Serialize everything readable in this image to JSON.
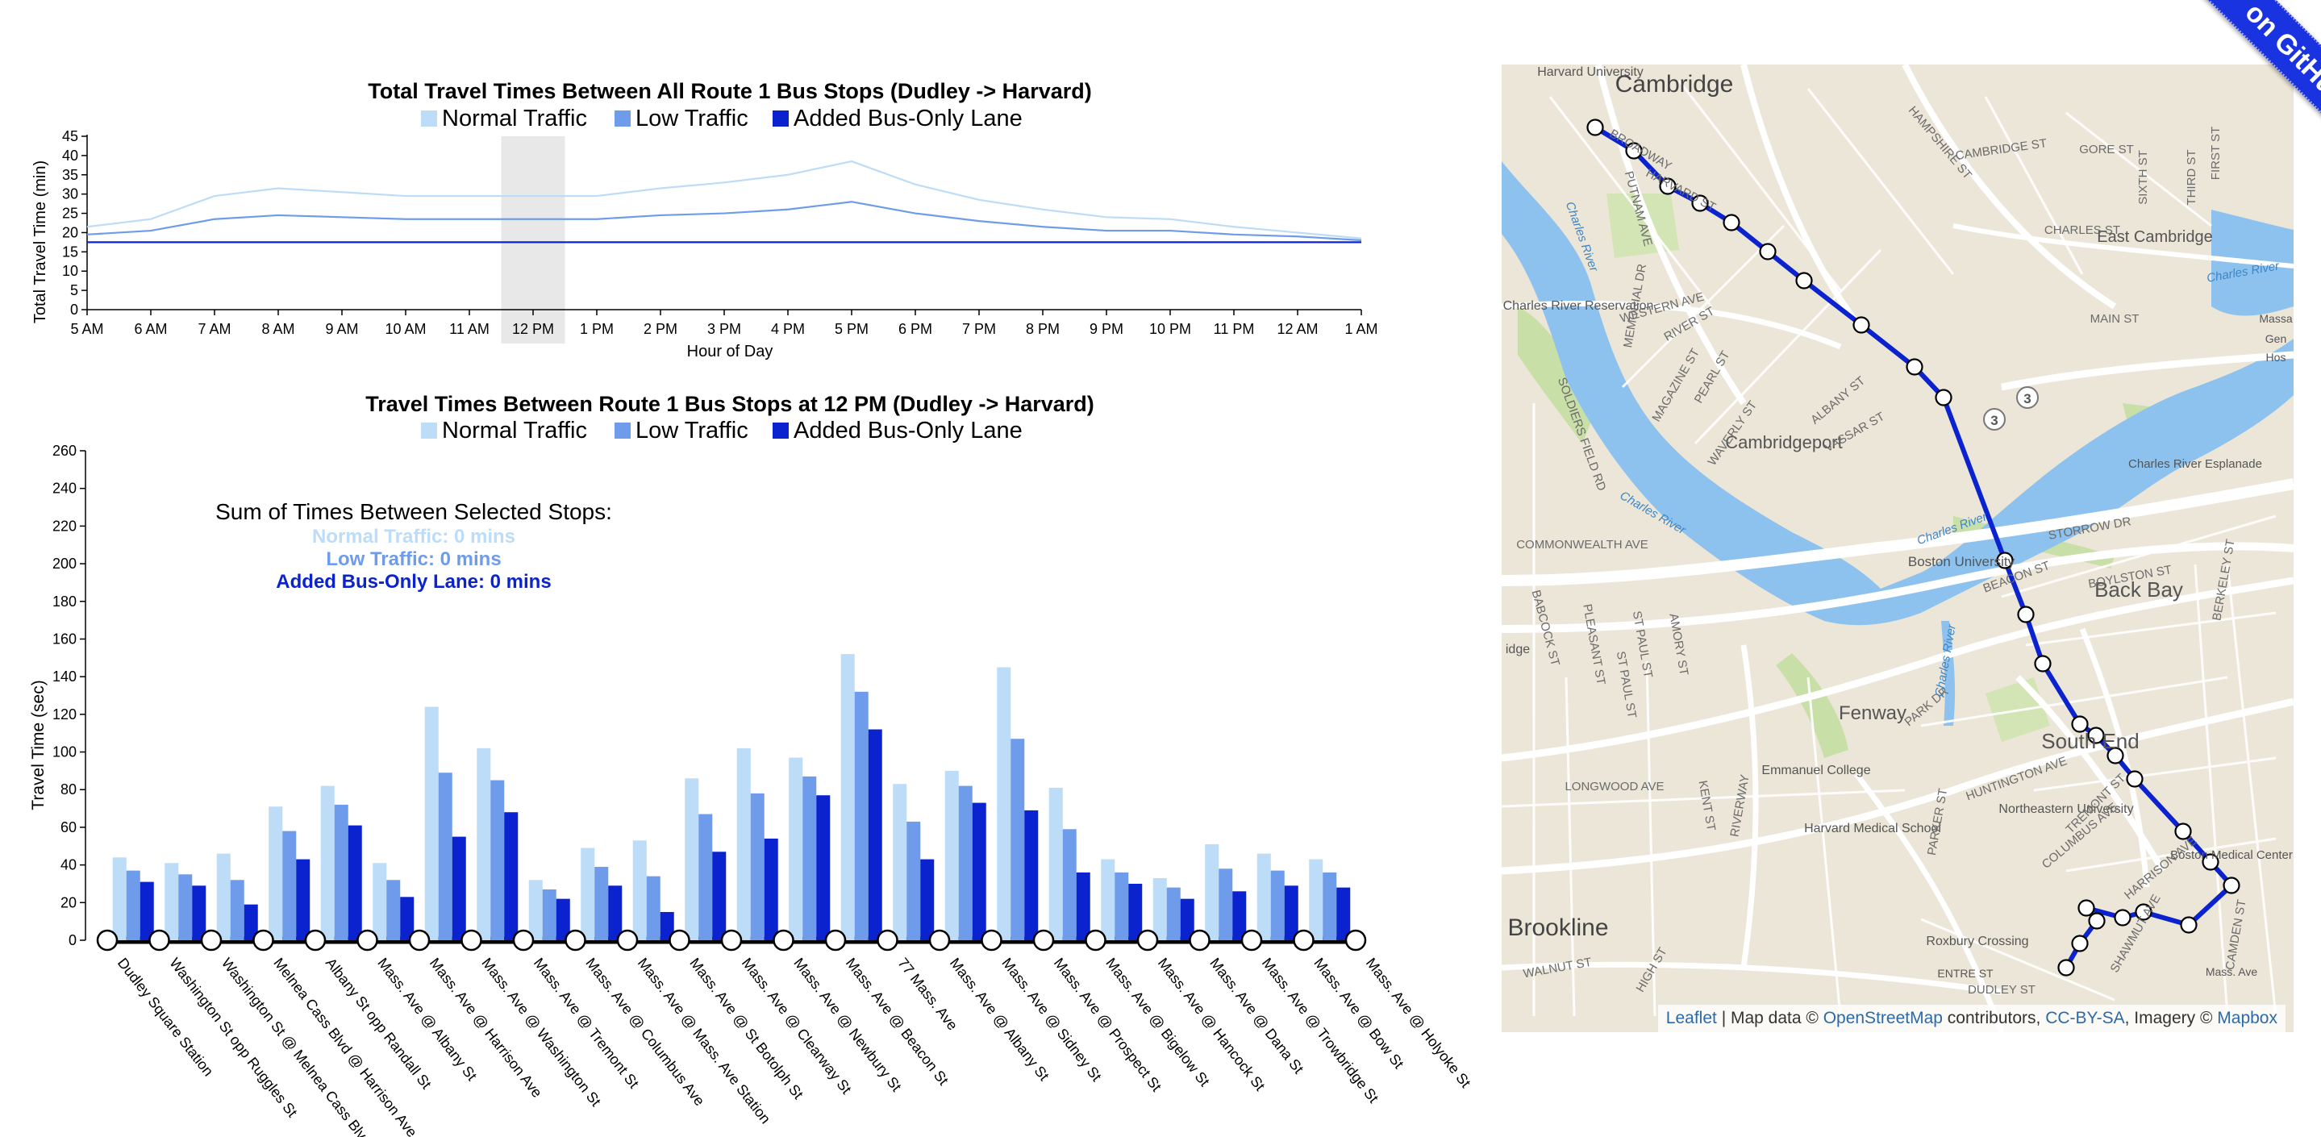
{
  "ribbon_text": "on GitHub",
  "colors": {
    "normal": "#bcdcf8",
    "low": "#6e9cea",
    "bus": "#0b23cf",
    "highlight": "#e8e8e8"
  },
  "chart_data": [
    {
      "type": "line",
      "title": "Total Travel Times Between All Route 1 Bus Stops (Dudley -> Harvard)",
      "legend": [
        "Normal Traffic",
        "Low Traffic",
        "Added Bus-Only Lane"
      ],
      "xlabel": "Hour of Day",
      "ylabel": "Total Travel Time (min)",
      "ylim": [
        0,
        45
      ],
      "yticks": [
        0,
        5,
        10,
        15,
        20,
        25,
        30,
        35,
        40,
        45
      ],
      "x": [
        "5 AM",
        "6 AM",
        "7 AM",
        "8 AM",
        "9 AM",
        "10 AM",
        "11 AM",
        "12 PM",
        "1 PM",
        "2 PM",
        "3 PM",
        "4 PM",
        "5 PM",
        "6 PM",
        "7 PM",
        "8 PM",
        "9 PM",
        "10 PM",
        "11 PM",
        "12 AM",
        "1 AM"
      ],
      "highlight": "12 PM",
      "series": [
        {
          "name": "Normal Traffic",
          "values": [
            21.5,
            23.5,
            29.5,
            31.5,
            30.5,
            29.5,
            29.5,
            29.5,
            29.5,
            31.5,
            33,
            35,
            38.5,
            32.5,
            28.5,
            26,
            24,
            23.5,
            21.5,
            20,
            18.5
          ]
        },
        {
          "name": "Low Traffic",
          "values": [
            19.5,
            20.5,
            23.5,
            24.5,
            24,
            23.5,
            23.5,
            23.5,
            23.5,
            24.5,
            25,
            26,
            28,
            25,
            23,
            21.5,
            20.5,
            20.5,
            19.5,
            19,
            18
          ]
        },
        {
          "name": "Added Bus-Only Lane",
          "values": [
            17.5,
            17.5,
            17.5,
            17.5,
            17.5,
            17.5,
            17.5,
            17.5,
            17.5,
            17.5,
            17.5,
            17.5,
            17.5,
            17.5,
            17.5,
            17.5,
            17.5,
            17.5,
            17.5,
            17.5,
            17.5
          ]
        }
      ]
    },
    {
      "type": "bar",
      "title": "Travel Times Between Route 1 Bus Stops at 12 PM (Dudley -> Harvard)",
      "legend": [
        "Normal Traffic",
        "Low Traffic",
        "Added Bus-Only Lane"
      ],
      "ylabel": "Travel Time (sec)",
      "ylim": [
        0,
        260
      ],
      "yticks": [
        0,
        20,
        40,
        60,
        80,
        100,
        120,
        140,
        160,
        180,
        200,
        220,
        240,
        260
      ],
      "stops": [
        "Dudley Square Station",
        "Washington St opp Ruggles St",
        "Washington St @ Melnea Cass Blvd",
        "Melnea Cass Blvd @ Harrison Ave",
        "Albany St opp Randall St",
        "Mass. Ave @ Albany St",
        "Mass. Ave @ Harrison Ave",
        "Mass. Ave @ Washington St",
        "Mass. Ave @ Tremont St",
        "Mass. Ave @ Columbus Ave",
        "Mass. Ave @ Mass. Ave Station",
        "Mass. Ave @ St Botolph St",
        "Mass. Ave @ Clearway St",
        "Mass. Ave @ Newbury St",
        "Mass. Ave @ Beacon St",
        "77 Mass. Ave",
        "Mass. Ave @ Albany St",
        "Mass. Ave @ Sidney St",
        "Mass. Ave @ Prospect St",
        "Mass. Ave @ Bigelow St",
        "Mass. Ave @ Hancock St",
        "Mass. Ave @ Dana St",
        "Mass. Ave @ Trowbridge St",
        "Mass. Ave @ Bow St",
        "Mass. Ave @ Holyoke St"
      ],
      "series": [
        {
          "name": "Normal Traffic",
          "values": [
            44,
            41,
            46,
            71,
            82,
            41,
            124,
            102,
            32,
            49,
            53,
            86,
            102,
            97,
            152,
            83,
            90,
            145,
            81,
            43,
            33,
            51,
            46,
            43
          ]
        },
        {
          "name": "Low Traffic",
          "values": [
            37,
            35,
            32,
            58,
            72,
            32,
            89,
            85,
            27,
            39,
            34,
            67,
            78,
            87,
            132,
            63,
            82,
            107,
            59,
            36,
            28,
            38,
            37,
            36
          ]
        },
        {
          "name": "Added Bus-Only Lane",
          "values": [
            31,
            29,
            19,
            43,
            61,
            23,
            55,
            68,
            22,
            29,
            15,
            47,
            54,
            77,
            112,
            43,
            73,
            69,
            36,
            30,
            22,
            26,
            29,
            28
          ]
        }
      ],
      "summary": {
        "heading": "Sum of Times Between Selected Stops:",
        "normal": "Normal Traffic: 0 mins",
        "low": "Low Traffic: 0 mins",
        "bus": "Added Bus-Only Lane: 0 mins"
      }
    }
  ],
  "map": {
    "attribution": {
      "leaflet": "Leaflet",
      "sep1": " | Map data © ",
      "osm": "OpenStreetMap",
      "sep2": " contributors, ",
      "ccbysa": "CC-BY-SA",
      "sep3": ", Imagery © ",
      "mapbox": "Mapbox"
    },
    "places": [
      "Cambridge",
      "Harvard University",
      "East Cambridge",
      "Cambridgeport",
      "Charles River Reservation",
      "Boston University",
      "Back Bay",
      "Fenway",
      "South End",
      "Emmanuel College",
      "Northeastern University",
      "Harvard Medical School",
      "Brookline",
      "Boston Medical Center",
      "Roxbury Crossing",
      "Charles River Esplanade"
    ],
    "streets": [
      "BROADWAY",
      "HARVARD ST",
      "CAMBRIDGE ST",
      "GORE ST",
      "HAMPSHIRE ST",
      "MAIN ST",
      "MEMORIAL DR",
      "WESTERN AVE",
      "RIVER ST",
      "MAGAZINE ST",
      "PEARL ST",
      "ALBANY ST",
      "VASSAR ST",
      "WAVERLY ST",
      "PUTNAM AVE",
      "SIXTH ST",
      "CHARLES ST",
      "COMMONWEALTH AVE",
      "STORROW DR",
      "BEACON ST",
      "BOYLSTON ST",
      "HUNTINGTON AVE",
      "COLUMBUS AVE",
      "TREMONT ST",
      "SHAWMUT AVE",
      "DUDLEY ST",
      "LONGWOOD AVE",
      "BABCOCK ST",
      "PLEASANT ST",
      "ST PAUL ST",
      "AMORY ST",
      "PARK DR",
      "KENT ST",
      "RIVERWAY",
      "PARKER ST",
      "WALNUT ST",
      "HIGH ST",
      "SOLDIERS FIELD RD",
      "BERKELEY ST",
      "HARRISON AVE",
      "CAMDEN ST",
      "FIRST ST",
      "THIRD ST",
      "ST PAUL ST"
    ],
    "water_labels": [
      "Charles River",
      "Charles River",
      "Charles River",
      "Charles River",
      "Charles River"
    ],
    "route_markers": [
      "3",
      "3"
    ],
    "partial_labels": [
      "Massa",
      "Gen",
      "Hos",
      "idge",
      "ENTRE ST",
      "Mass. Ave"
    ]
  }
}
